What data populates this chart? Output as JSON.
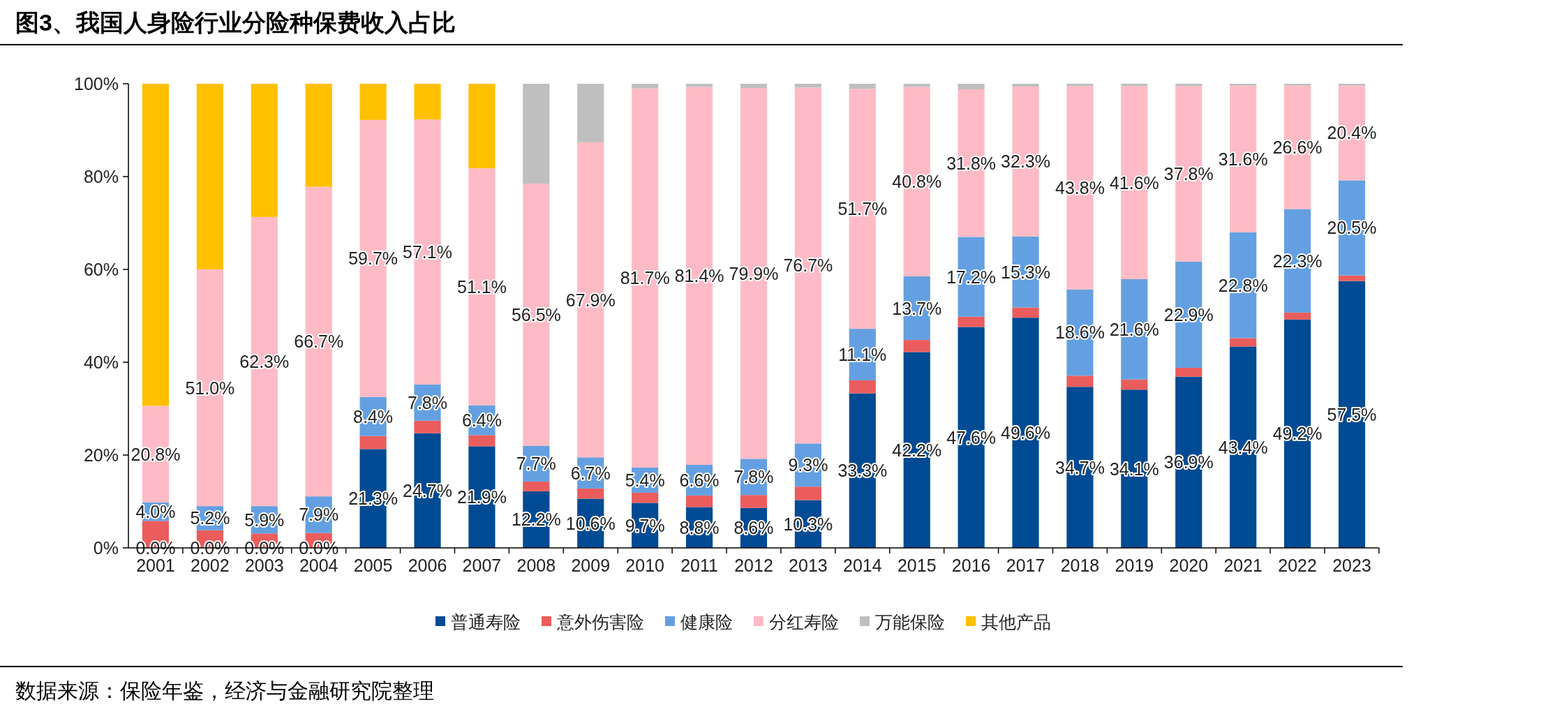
{
  "chart_data": {
    "type": "bar",
    "stacked": true,
    "title": "图3、我国人身险行业分险种保费收入占比",
    "annotations": [
      "数据来源：保险年鉴，经济与金融研究院整理"
    ],
    "categories": [
      "2001",
      "2002",
      "2003",
      "2004",
      "2005",
      "2006",
      "2007",
      "2008",
      "2009",
      "2010",
      "2011",
      "2012",
      "2013",
      "2014",
      "2015",
      "2016",
      "2017",
      "2018",
      "2019",
      "2020",
      "2021",
      "2022",
      "2023"
    ],
    "ylim": [
      0,
      100
    ],
    "yticks": [
      {
        "value": 0,
        "label": "0%"
      },
      {
        "value": 20,
        "label": "20%"
      },
      {
        "value": 40,
        "label": "40%"
      },
      {
        "value": 60,
        "label": "60%"
      },
      {
        "value": 80,
        "label": "80%"
      },
      {
        "value": 100,
        "label": "100%"
      }
    ],
    "grid": false,
    "legend": "bottom",
    "series": [
      {
        "name": "普通寿险",
        "color": "#004b93",
        "values": [
          0,
          0,
          0,
          0,
          21.3,
          24.7,
          21.9,
          12.2,
          10.6,
          9.7,
          8.8,
          8.6,
          10.3,
          33.3,
          42.2,
          47.6,
          49.6,
          34.7,
          34.1,
          36.9,
          43.4,
          49.2,
          57.5
        ],
        "value_labels": [
          "0.0%",
          "0.0%",
          "0.0%",
          "0.0%",
          "21.3%",
          "24.7%",
          "21.9%",
          "12.2%",
          "10.6%",
          "9.7%",
          "8.8%",
          "8.6%",
          "10.3%",
          "33.3%",
          "42.2%",
          "47.6%",
          "49.6%",
          "34.7%",
          "34.1%",
          "36.9%",
          "43.4%",
          "49.2%",
          "57.5%"
        ]
      },
      {
        "name": "意外伤害险",
        "color": "#eb5c5c",
        "values": [
          5.8,
          3.8,
          3.1,
          3.2,
          2.8,
          2.7,
          2.4,
          2.1,
          2.2,
          2.2,
          2.5,
          2.8,
          2.9,
          2.8,
          2.6,
          2.2,
          2.2,
          2.4,
          2.2,
          1.9,
          1.8,
          1.5,
          1.2
        ]
      },
      {
        "name": "健康险",
        "color": "#64a0e1",
        "values": [
          4.0,
          5.2,
          5.9,
          7.9,
          8.4,
          7.8,
          6.4,
          7.7,
          6.7,
          5.4,
          6.6,
          7.8,
          9.3,
          11.1,
          13.7,
          17.2,
          15.3,
          18.6,
          21.6,
          22.9,
          22.8,
          22.3,
          20.5
        ],
        "value_labels": [
          "4.0%",
          "5.2%",
          "5.9%",
          "7.9%",
          "8.4%",
          "7.8%",
          "6.4%",
          "7.7%",
          "6.7%",
          "5.4%",
          "6.6%",
          "7.8%",
          "9.3%",
          "11.1%",
          "13.7%",
          "17.2%",
          "15.3%",
          "18.6%",
          "21.6%",
          "22.9%",
          "22.8%",
          "22.3%",
          "20.5%"
        ]
      },
      {
        "name": "分红寿险",
        "color": "#ffbbc5",
        "values": [
          20.8,
          51.0,
          62.3,
          66.7,
          59.7,
          57.1,
          51.1,
          56.5,
          67.9,
          81.7,
          81.4,
          79.9,
          76.7,
          51.7,
          40.8,
          31.8,
          32.3,
          43.8,
          41.6,
          37.8,
          31.6,
          26.6,
          20.4
        ],
        "value_labels": [
          "20.8%",
          "51.0%",
          "62.3%",
          "66.7%",
          "59.7%",
          "57.1%",
          "51.1%",
          "56.5%",
          "67.9%",
          "81.7%",
          "81.4%",
          "79.9%",
          "76.7%",
          "51.7%",
          "40.8%",
          "31.8%",
          "32.3%",
          "43.8%",
          "41.6%",
          "37.8%",
          "31.6%",
          "26.6%",
          "20.4%"
        ]
      },
      {
        "name": "万能保险",
        "color": "#bfbfbf",
        "values": [
          0,
          0,
          0,
          0,
          0,
          0,
          0,
          21.5,
          12.6,
          1.0,
          0.7,
          0.9,
          0.8,
          1.1,
          0.7,
          1.2,
          0.6,
          0.5,
          0.5,
          0.5,
          0.4,
          0.4,
          0.4
        ]
      },
      {
        "name": "其他产品",
        "color": "#ffc000",
        "values": [
          69.4,
          40.0,
          28.7,
          22.2,
          7.8,
          7.7,
          18.2,
          0,
          0,
          0,
          0,
          0,
          0,
          0,
          0,
          0,
          0,
          0,
          0,
          0,
          0,
          0,
          0
        ]
      }
    ]
  }
}
